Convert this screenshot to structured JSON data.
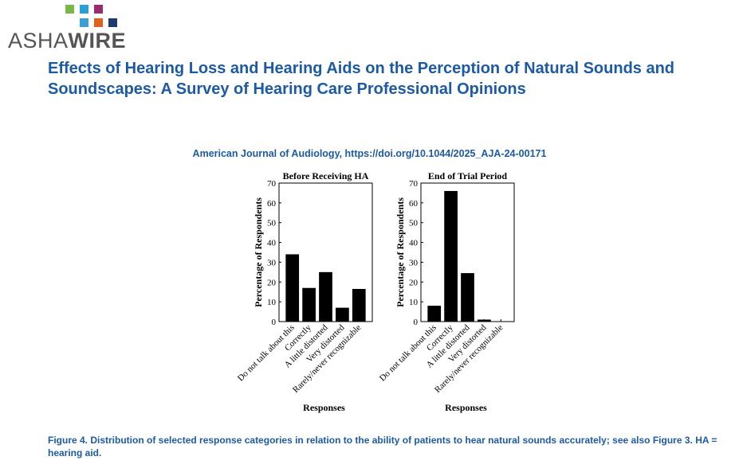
{
  "logo": {
    "text_regular": "ASHA",
    "text_bold": "WIRE",
    "square_colors": [
      "#7ab648",
      "#2a9fd6",
      "#9a2b6e",
      "#3c9fd6",
      "#e0611f",
      "#1f3a6e"
    ]
  },
  "title": "Effects of Hearing Loss and Hearing Aids on the Perception of Natural Sounds and Soundscapes: A Survey of Hearing Care Professional Opinions",
  "journal": "American Journal of Audiology, https://doi.org/10.1044/2025_AJA-24-00171",
  "caption": "Figure 4. Distribution of selected response categories in relation to the ability of patients to hear natural sounds accurately; see also Figure 3. HA = hearing aid.",
  "colors": {
    "title": "#1d5aa5",
    "bars": "#000000"
  },
  "chart_data": [
    {
      "type": "bar",
      "title": "Before Receiving HA",
      "xlabel": "Responses",
      "ylabel": "Percentage of Respondents",
      "ylim": [
        0,
        70
      ],
      "yticks": [
        "0",
        "10",
        "20",
        "30",
        "40",
        "50",
        "60",
        "70"
      ],
      "categories": [
        "Do not talk about this",
        "Correctly",
        "A little distorted",
        "Very distorted",
        "Rarely/never recognizable"
      ],
      "values": [
        34,
        17,
        25,
        7,
        16.5
      ]
    },
    {
      "type": "bar",
      "title": "End of Trial Period",
      "xlabel": "Responses",
      "ylabel": "Percentage of Respondents",
      "ylim": [
        0,
        70
      ],
      "yticks": [
        "0",
        "10",
        "20",
        "30",
        "40",
        "50",
        "60",
        "70"
      ],
      "categories": [
        "Do not talk about this",
        "Correctly",
        "A little distorted",
        "Very distorted",
        "Rarely/never recognizable"
      ],
      "values": [
        8,
        66,
        24.5,
        1,
        0
      ]
    }
  ]
}
